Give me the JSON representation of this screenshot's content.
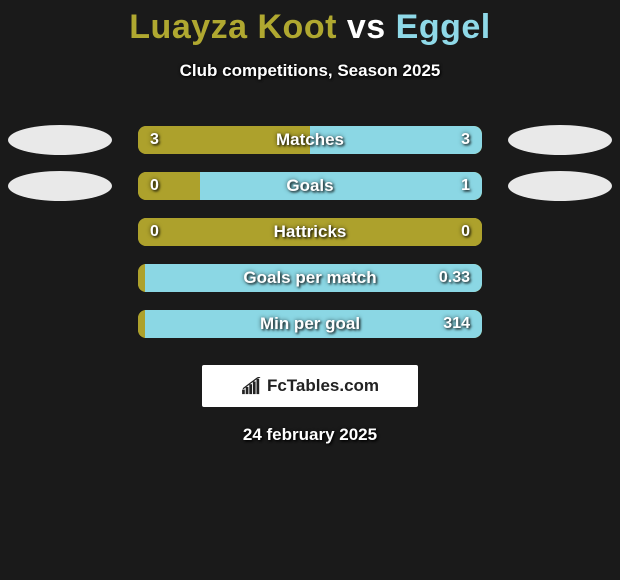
{
  "title": {
    "player1": "Luayza Koot",
    "vs": "vs",
    "player2": "Eggel",
    "player1_color": "#b0a830",
    "vs_color": "#ffffff",
    "player2_color": "#8fd9e8"
  },
  "subtitle": "Club competitions, Season 2025",
  "colors": {
    "left_fill": "#ada12c",
    "right_fill": "#8bd7e4",
    "track": "#ada12c",
    "ellipse_left": "#e9e9e9",
    "ellipse_right": "#e9e9e9",
    "background": "#1a1a1a"
  },
  "rows": [
    {
      "label": "Matches",
      "left_value": "3",
      "right_value": "3",
      "left_pct": 50,
      "right_pct": 50,
      "show_ellipses": true
    },
    {
      "label": "Goals",
      "left_value": "0",
      "right_value": "1",
      "left_pct": 18,
      "right_pct": 82,
      "show_ellipses": true
    },
    {
      "label": "Hattricks",
      "left_value": "0",
      "right_value": "0",
      "left_pct": 100,
      "right_pct": 0,
      "show_ellipses": false
    },
    {
      "label": "Goals per match",
      "left_value": "",
      "right_value": "0.33",
      "left_pct": 2,
      "right_pct": 98,
      "show_ellipses": false
    },
    {
      "label": "Min per goal",
      "left_value": "",
      "right_value": "314",
      "left_pct": 2,
      "right_pct": 98,
      "show_ellipses": false
    }
  ],
  "attribution": "FcTables.com",
  "date": "24 february 2025"
}
